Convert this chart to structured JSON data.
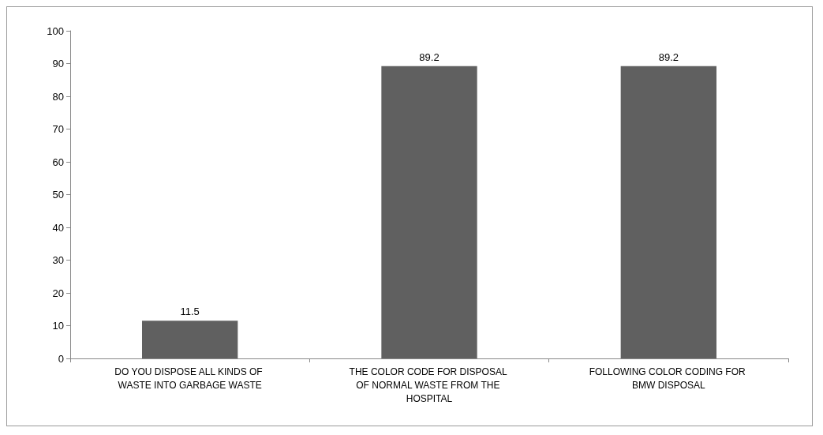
{
  "chart_data": {
    "type": "bar",
    "categories": [
      "DO YOU DISPOSE ALL KINDS OF WASTE INTO GARBAGE WASTE",
      "THE COLOR CODE FOR DISPOSAL OF NORMAL WASTE FROM THE HOSPITAL",
      "FOLLOWING COLOR CODING FOR BMW DISPOSAL"
    ],
    "values": [
      11.5,
      89.2,
      89.2
    ],
    "color": "#606060",
    "ylim": [
      0,
      100
    ],
    "yticks": [
      0,
      10,
      20,
      30,
      40,
      50,
      60,
      70,
      80,
      90,
      100
    ],
    "grid": false,
    "data_labels": true
  }
}
